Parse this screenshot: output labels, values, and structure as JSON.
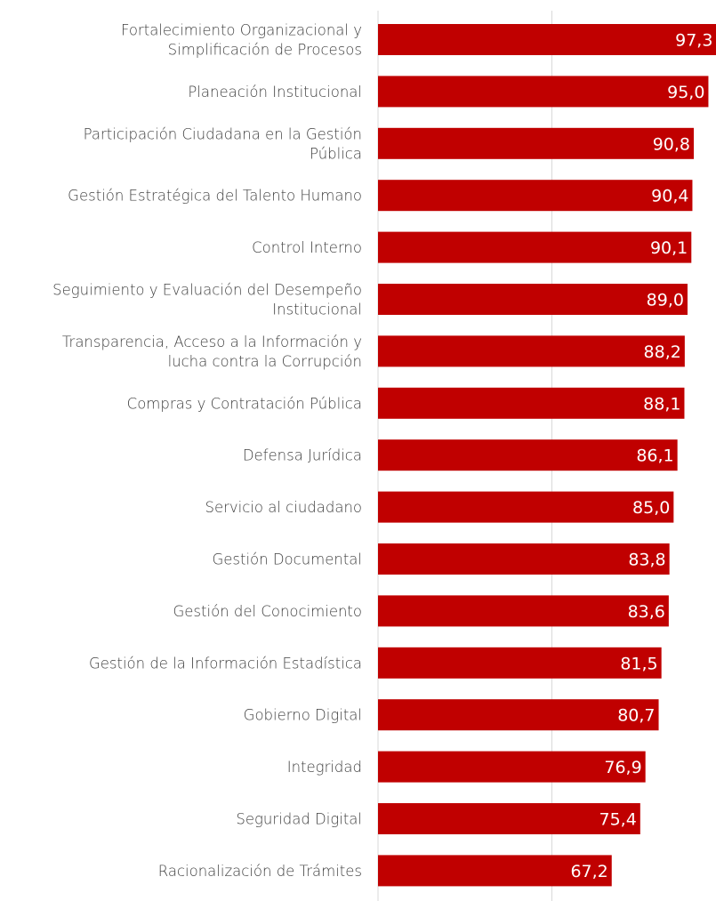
{
  "chart_data": {
    "type": "bar",
    "orientation": "horizontal",
    "categories": [
      [
        "Fortalecimiento Organizacional y",
        "Simplificación de Procesos"
      ],
      [
        "Planeación Institucional"
      ],
      [
        "Participación Ciudadana en la Gestión",
        "Pública"
      ],
      [
        "Gestión Estratégica del Talento Humano"
      ],
      [
        "Control Interno"
      ],
      [
        "Seguimiento y Evaluación del Desempeño",
        "Institucional"
      ],
      [
        "Transparencia, Acceso a la Información y",
        "lucha contra la Corrupción"
      ],
      [
        "Compras y Contratación Pública"
      ],
      [
        "Defensa Jurídica"
      ],
      [
        "Servicio al ciudadano"
      ],
      [
        "Gestión Documental"
      ],
      [
        "Gestión del Conocimiento"
      ],
      [
        "Gestión de la Información Estadística"
      ],
      [
        "Gobierno Digital"
      ],
      [
        "Integridad"
      ],
      [
        "Seguridad Digital"
      ],
      [
        "Racionalización de Trámites"
      ]
    ],
    "values": [
      97.3,
      95.0,
      90.8,
      90.4,
      90.1,
      89.0,
      88.2,
      88.1,
      86.1,
      85.0,
      83.8,
      83.6,
      81.5,
      80.7,
      76.9,
      75.4,
      67.2
    ],
    "value_labels": [
      "97,3",
      "95,0",
      "90,8",
      "90,4",
      "90,1",
      "89,0",
      "88,2",
      "88,1",
      "86,1",
      "85,0",
      "83,8",
      "83,6",
      "81,5",
      "80,7",
      "76,9",
      "75,4",
      "67,2"
    ],
    "title": "",
    "xlabel": "",
    "ylabel": "",
    "xlim": [
      0,
      100
    ],
    "gridlines_at": [
      50
    ],
    "grid": true,
    "legend": "none",
    "bar_color": "#c00000",
    "label_color": "#404040",
    "value_label_color": "#ffffff"
  }
}
